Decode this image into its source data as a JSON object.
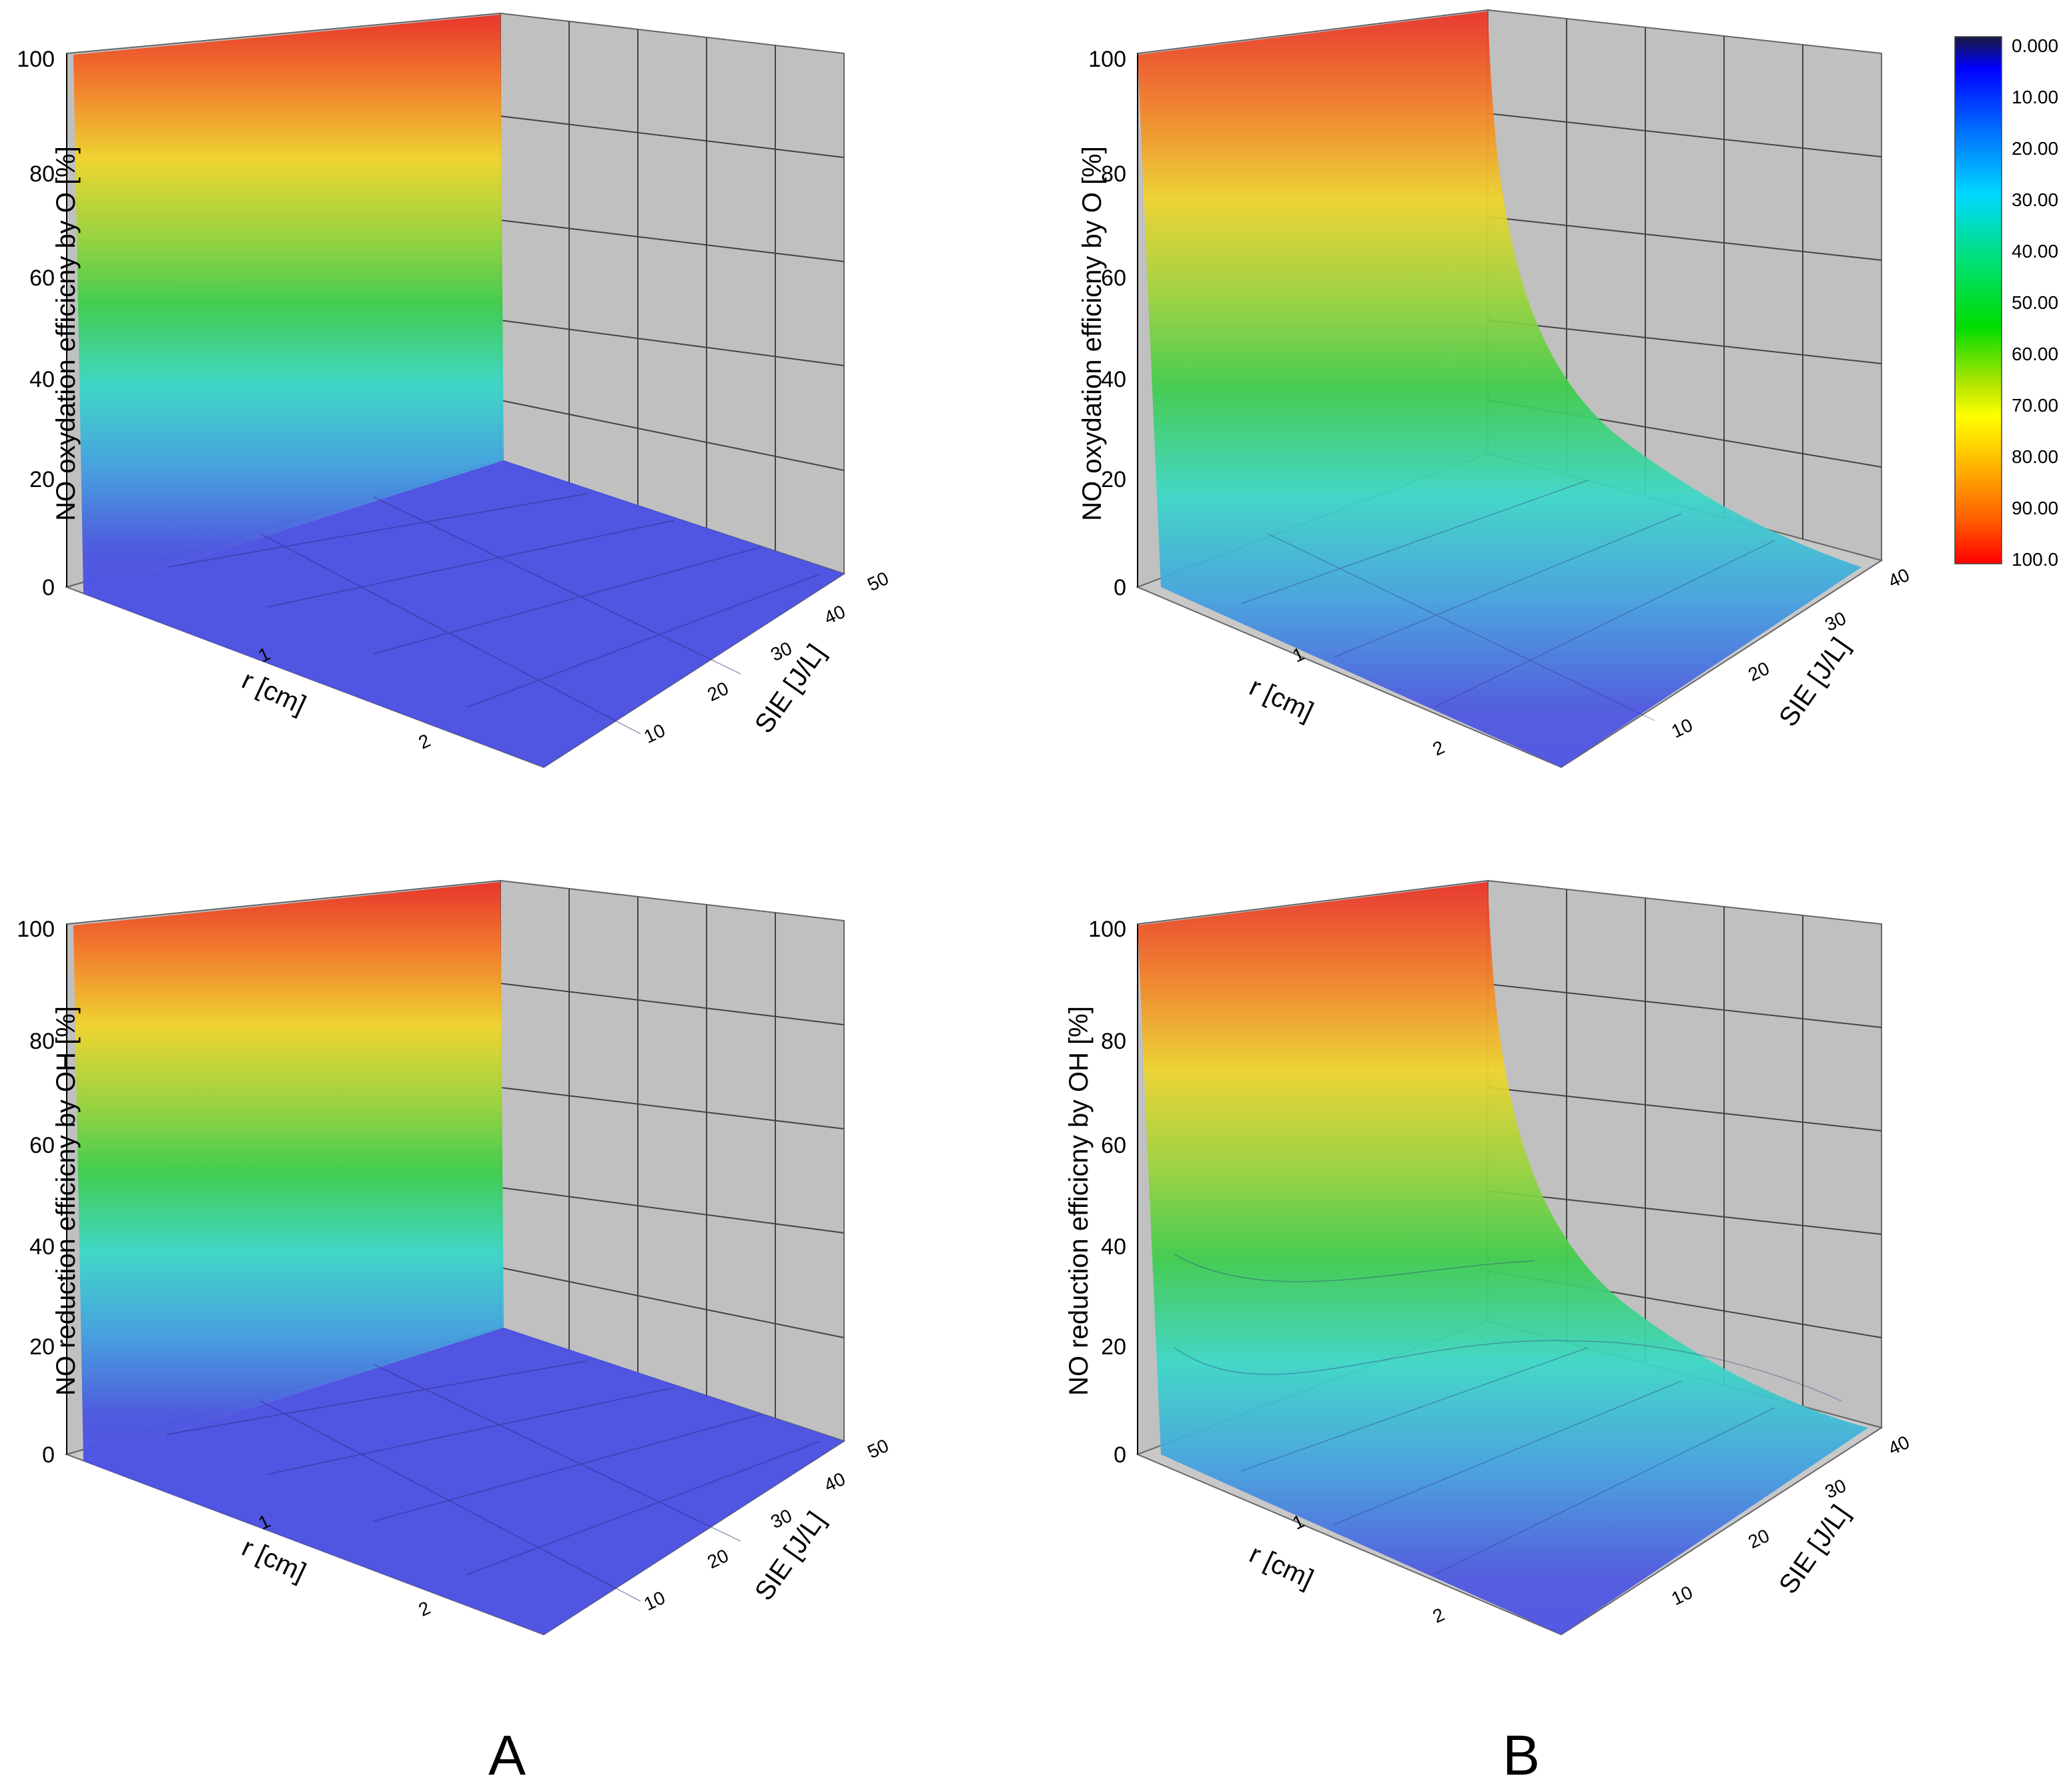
{
  "figure": {
    "panel_labels": [
      "A",
      "B"
    ]
  },
  "colorbar": {
    "labels": [
      "0.000",
      "10.00",
      "20.00",
      "30.00",
      "40.00",
      "50.00",
      "60.00",
      "70.00",
      "80.00",
      "90.00",
      "100.0"
    ],
    "stops": [
      "#000000",
      "#0000ff",
      "#0055ff",
      "#00bfff",
      "#00e5c0",
      "#00dd00",
      "#7fe000",
      "#ffff00",
      "#ffa500",
      "#ff5000",
      "#ff0000"
    ]
  },
  "chart_data": [
    {
      "id": "A-top",
      "type": "surface",
      "column": "A",
      "row": 1,
      "zlabel": "NO oxydation efficicny by O [%]",
      "xlabel": "r [cm]",
      "ylabel": "SIE [J/L]",
      "z_ticks": [
        "0",
        "20",
        "40",
        "60",
        "80",
        "100"
      ],
      "x_ticks": [
        "1",
        "2"
      ],
      "y_ticks": [
        "10",
        "20",
        "30",
        "40",
        "50"
      ],
      "zlim": [
        0,
        100
      ],
      "ylim": [
        0,
        50
      ],
      "surface_profile": {
        "x": [
          0,
          0.05,
          0.1,
          3
        ],
        "z": [
          100,
          100,
          0,
          0
        ]
      }
    },
    {
      "id": "B-top",
      "type": "surface",
      "column": "B",
      "row": 1,
      "zlabel": "NO oxydation efficicny by O [%]",
      "xlabel": "r [cm]",
      "ylabel": "SIE [J/L]",
      "z_ticks": [
        "0",
        "20",
        "40",
        "60",
        "80",
        "100"
      ],
      "x_ticks": [
        "1",
        "2"
      ],
      "y_ticks": [
        "10",
        "20",
        "30",
        "40"
      ],
      "zlim": [
        0,
        100
      ],
      "ylim": [
        0,
        40
      ],
      "surface_profile": {
        "x": [
          0,
          0.2,
          0.4,
          0.8,
          1.2,
          1.6,
          2.0,
          3
        ],
        "z": [
          100,
          55,
          35,
          20,
          12,
          8,
          5,
          2
        ]
      }
    },
    {
      "id": "A-bottom",
      "type": "surface",
      "column": "A",
      "row": 2,
      "zlabel": "NO reduction efficicny by OH [%]",
      "xlabel": "r [cm]",
      "ylabel": "SIE [J/L]",
      "z_ticks": [
        "0",
        "20",
        "40",
        "60",
        "80",
        "100"
      ],
      "x_ticks": [
        "1",
        "2"
      ],
      "y_ticks": [
        "10",
        "20",
        "30",
        "40",
        "50"
      ],
      "zlim": [
        0,
        100
      ],
      "ylim": [
        0,
        50
      ],
      "surface_profile": {
        "x": [
          0,
          0.05,
          0.1,
          3
        ],
        "z": [
          100,
          100,
          0,
          0
        ]
      }
    },
    {
      "id": "B-bottom",
      "type": "surface",
      "column": "B",
      "row": 2,
      "zlabel": "NO reduction efficicny by OH [%]",
      "xlabel": "r [cm]",
      "ylabel": "SIE [J/L]",
      "z_ticks": [
        "0",
        "20",
        "40",
        "60",
        "80",
        "100"
      ],
      "x_ticks": [
        "1",
        "2"
      ],
      "y_ticks": [
        "10",
        "20",
        "30",
        "40"
      ],
      "zlim": [
        0,
        100
      ],
      "ylim": [
        0,
        40
      ],
      "surface_profile": {
        "x": [
          0,
          0.2,
          0.4,
          0.8,
          1.2,
          1.6,
          2.0,
          3
        ],
        "z": [
          100,
          60,
          40,
          25,
          16,
          11,
          8,
          5
        ]
      }
    }
  ]
}
